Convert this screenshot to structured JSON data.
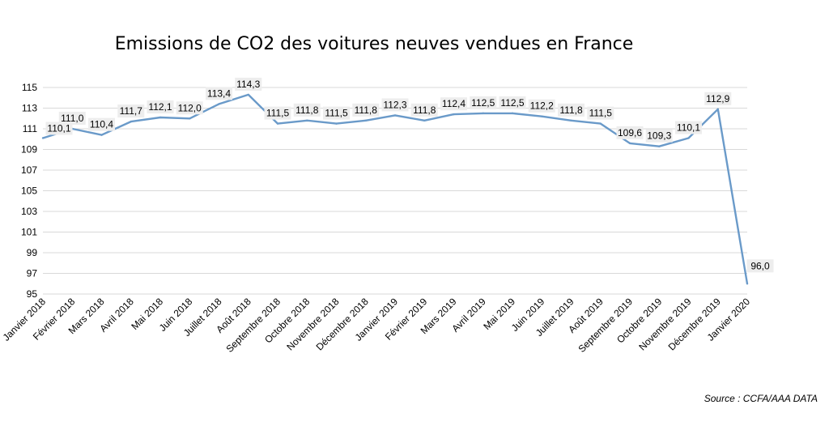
{
  "title": "Emissions de CO2 des voitures neuves vendues en France",
  "source": "Source : CCFA/AAA DATA",
  "chart_data": {
    "type": "line",
    "title": "Emissions de CO2 des voitures neuves vendues en France",
    "xlabel": "",
    "ylabel": "",
    "ylim": [
      95,
      115
    ],
    "yticks": [
      95,
      97,
      99,
      101,
      103,
      105,
      107,
      109,
      111,
      113,
      115
    ],
    "ytick_labels": [
      "95",
      "97",
      "99",
      "101",
      "103",
      "105",
      "107",
      "109",
      "111",
      "113",
      "115"
    ],
    "grid": true,
    "legend": "none",
    "line_color": "#6a9ac9",
    "categories": [
      "Janvier 2018",
      "Février 2018",
      "Mars 2018",
      "Avril 2018",
      "Mai 2018",
      "Juin 2018",
      "Juillet 2018",
      "Août 2018",
      "Septembre 2018",
      "Octobre 2018",
      "Novembre 2018",
      "Décembre 2018",
      "Janvier 2019",
      "Février 2019",
      "Mars 2019",
      "Avril 2019",
      "Mai 2019",
      "Juin 2019",
      "Juillet 2019",
      "Août 2019",
      "Septembre 2019",
      "Octobre 2019",
      "Novembre 2019",
      "Décembre 2019",
      "Janvier 2020"
    ],
    "series": [
      {
        "values": [
          110.1,
          111.0,
          110.4,
          111.7,
          112.1,
          112.0,
          113.4,
          114.3,
          111.5,
          111.8,
          111.5,
          111.8,
          112.3,
          111.8,
          112.4,
          112.5,
          112.5,
          112.2,
          111.8,
          111.5,
          109.6,
          109.3,
          110.1,
          112.9,
          96.0
        ],
        "labels": [
          "110,1",
          "111,0",
          "110,4",
          "111,7",
          "112,1",
          "112,0",
          "113,4",
          "114,3",
          "111,5",
          "111,8",
          "111,5",
          "111,8",
          "112,3",
          "111,8",
          "112,4",
          "112,5",
          "112,5",
          "112,2",
          "111,8",
          "111,5",
          "109,6",
          "109,3",
          "110,1",
          "112,9",
          "96,0"
        ]
      }
    ]
  }
}
